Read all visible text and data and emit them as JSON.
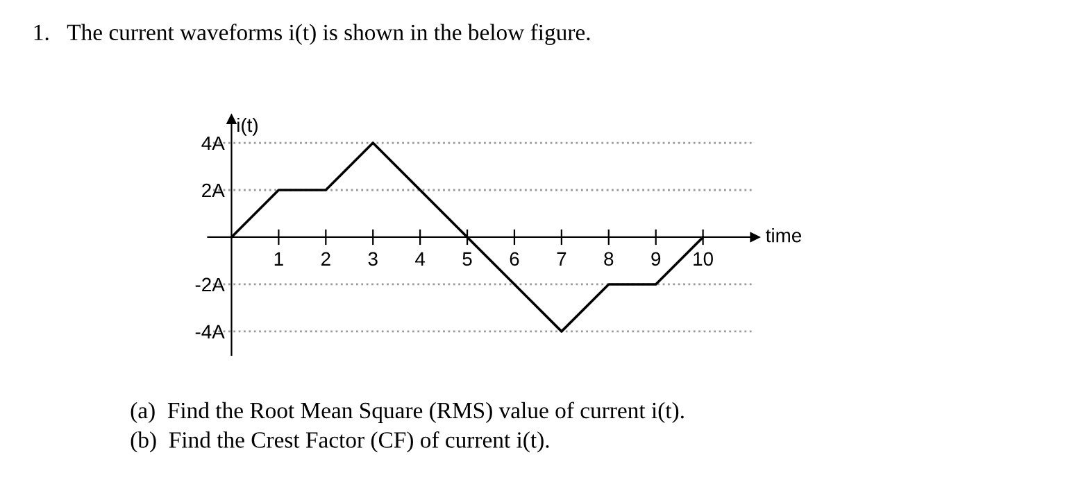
{
  "chart_data": {
    "type": "line",
    "title": "1.   The current waveforms i(t) is shown in the below figure.",
    "x": [
      0,
      1,
      2,
      3,
      5,
      7,
      8,
      9,
      10
    ],
    "series": [
      {
        "color": "#000000",
        "values": [
          0,
          2,
          2,
          4,
          0,
          -4,
          -2,
          -2,
          0
        ]
      }
    ],
    "xlim": [
      -0.5,
      11.1
    ],
    "ylim": [
      -5,
      5
    ],
    "xticks": [
      1,
      2,
      3,
      4,
      5,
      6,
      7,
      8,
      9,
      10
    ],
    "yticks": [
      {
        "value": -4,
        "label": "-4A"
      },
      {
        "value": -2,
        "label": "-2A"
      },
      {
        "value": 2,
        "label": "2A"
      },
      {
        "value": 4,
        "label": "4A"
      }
    ],
    "xlabel": "time",
    "ylabel": "i(t)",
    "grid": "y",
    "marker": "none",
    "line_style": "solid",
    "annotations": [
      "(a)  Find the Root Mean Square (RMS) value of current i(t).",
      "(b)  Find the Crest Factor (CF) of current i(t)."
    ]
  }
}
